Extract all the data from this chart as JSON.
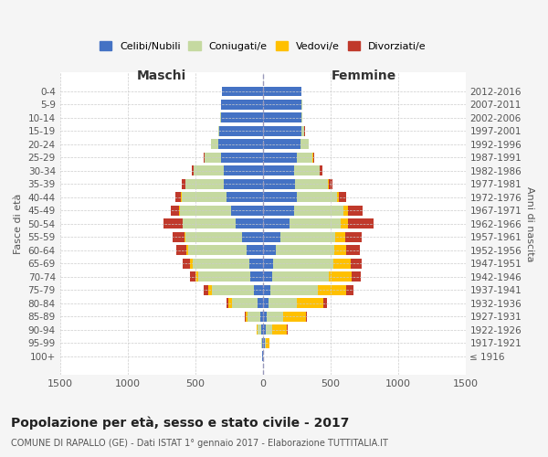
{
  "age_groups": [
    "100+",
    "95-99",
    "90-94",
    "85-89",
    "80-84",
    "75-79",
    "70-74",
    "65-69",
    "60-64",
    "55-59",
    "50-54",
    "45-49",
    "40-44",
    "35-39",
    "30-34",
    "25-29",
    "20-24",
    "15-19",
    "10-14",
    "5-9",
    "0-4"
  ],
  "birth_years": [
    "≤ 1916",
    "1917-1921",
    "1922-1926",
    "1927-1931",
    "1932-1936",
    "1937-1941",
    "1942-1946",
    "1947-1951",
    "1952-1956",
    "1957-1961",
    "1962-1966",
    "1967-1971",
    "1972-1976",
    "1977-1981",
    "1982-1986",
    "1987-1991",
    "1992-1996",
    "1997-2001",
    "2002-2006",
    "2007-2011",
    "2012-2016"
  ],
  "maschi": {
    "celibe": [
      2,
      5,
      10,
      20,
      40,
      65,
      95,
      100,
      120,
      150,
      200,
      235,
      270,
      290,
      290,
      310,
      330,
      320,
      310,
      310,
      300
    ],
    "coniugato": [
      0,
      5,
      30,
      90,
      190,
      310,
      380,
      420,
      430,
      420,
      390,
      380,
      330,
      280,
      220,
      120,
      50,
      10,
      2,
      1,
      0
    ],
    "vedovo": [
      0,
      0,
      5,
      15,
      25,
      30,
      20,
      15,
      12,
      8,
      5,
      4,
      3,
      2,
      1,
      1,
      0,
      0,
      0,
      0,
      0
    ],
    "divorziato": [
      0,
      0,
      2,
      5,
      10,
      30,
      40,
      55,
      75,
      90,
      140,
      60,
      45,
      30,
      15,
      8,
      3,
      1,
      0,
      0,
      0
    ]
  },
  "femmine": {
    "nubile": [
      3,
      15,
      20,
      30,
      40,
      55,
      70,
      80,
      100,
      130,
      200,
      230,
      250,
      240,
      230,
      250,
      280,
      290,
      290,
      290,
      290
    ],
    "coniugata": [
      0,
      5,
      50,
      120,
      210,
      350,
      420,
      440,
      430,
      410,
      380,
      370,
      300,
      240,
      190,
      120,
      60,
      20,
      5,
      2,
      0
    ],
    "vedova": [
      2,
      30,
      110,
      170,
      200,
      210,
      170,
      130,
      90,
      70,
      50,
      30,
      15,
      8,
      4,
      2,
      1,
      0,
      0,
      0,
      0
    ],
    "divorziata": [
      0,
      0,
      3,
      5,
      25,
      55,
      65,
      80,
      100,
      120,
      190,
      110,
      55,
      30,
      15,
      8,
      3,
      1,
      0,
      0,
      0
    ]
  },
  "colors": {
    "celibe": "#4472c4",
    "coniugato": "#c5d9a0",
    "vedovo": "#ffc000",
    "divorziato": "#c0392b"
  },
  "xlim": 1500,
  "title": "Popolazione per età, sesso e stato civile - 2017",
  "subtitle": "COMUNE DI RAPALLO (GE) - Dati ISTAT 1° gennaio 2017 - Elaborazione TUTTITALIA.IT",
  "ylabel_left": "Fasce di età",
  "ylabel_right": "Anni di nascita",
  "xlabel_left": "Maschi",
  "xlabel_right": "Femmine",
  "bg_color": "#f5f5f5",
  "plot_bg_color": "#ffffff"
}
